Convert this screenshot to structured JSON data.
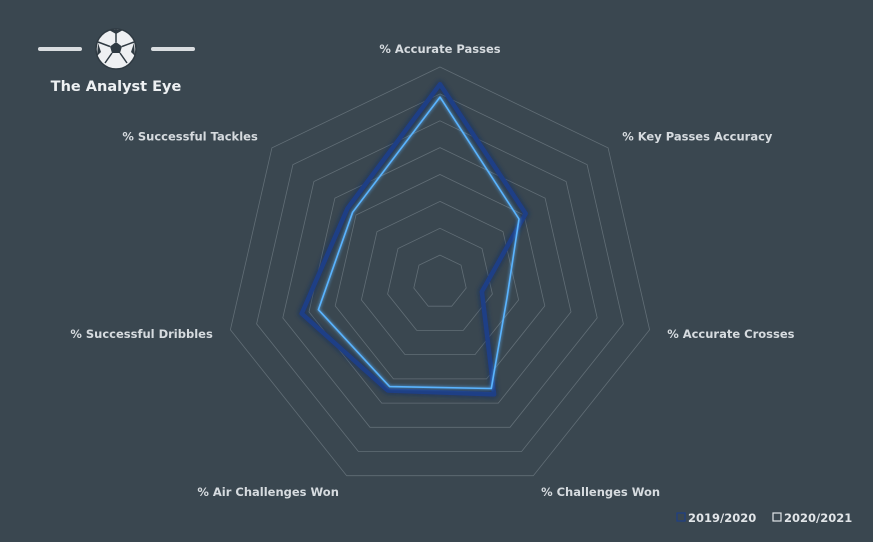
{
  "brand": {
    "name": "The Analyst Eye",
    "logo_icon": "soccer-ball-icon"
  },
  "colors": {
    "background": "#3a4750",
    "grid": "#6f7b83",
    "series_2019": "#1e3f86",
    "series_2020": "#5ab4ff"
  },
  "chart_data": {
    "type": "radar",
    "axes": [
      "% Accurate Passes",
      "% Key Passes Accuracy",
      "% Accurate Crosses",
      "% Challenges Won",
      "% Air Challenges Won",
      "% Successful Dribbles",
      "% Successful Tackles"
    ],
    "range": [
      0,
      100
    ],
    "grid_levels": 8,
    "grid": true,
    "legend_position": "bottom-right",
    "series": [
      {
        "name": "2019/2020",
        "values": [
          92,
          51,
          20,
          58,
          56,
          66,
          55
        ]
      },
      {
        "name": "2020/2021",
        "values": [
          86,
          47,
          32,
          55,
          54,
          58,
          52
        ]
      }
    ]
  }
}
